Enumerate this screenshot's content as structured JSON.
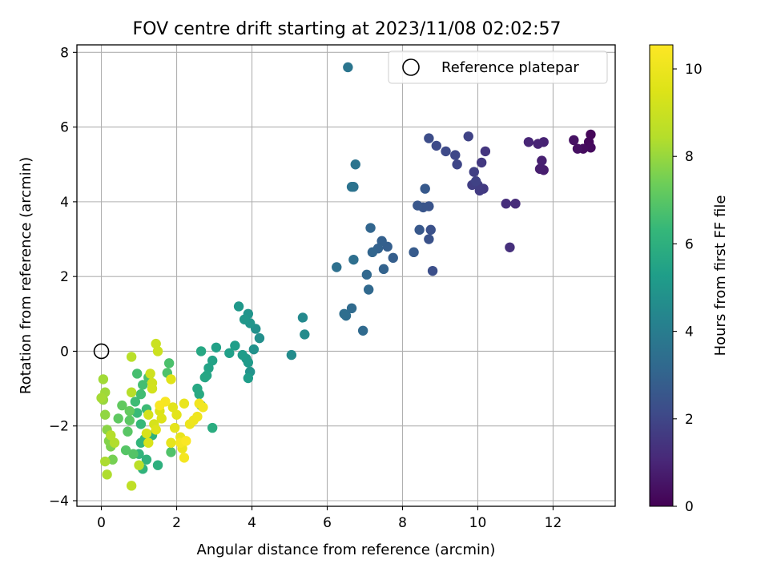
{
  "chart_data": {
    "type": "scatter",
    "title": "FOV centre drift starting at 2023/11/08 02:02:57",
    "xlabel": "Angular distance from reference (arcmin)",
    "ylabel": "Rotation from reference (arcmin)",
    "xlim": [
      -0.65,
      13.65
    ],
    "ylim": [
      -4.15,
      8.2
    ],
    "xticks": [
      0,
      2,
      4,
      6,
      8,
      10,
      12
    ],
    "yticks": [
      -4,
      -2,
      0,
      2,
      4,
      6,
      8
    ],
    "grid": true,
    "legend": {
      "placement": "top-right",
      "entries": [
        "Reference platepar"
      ]
    },
    "reference_point": {
      "label": "Reference platepar",
      "x": 0,
      "y": 0
    },
    "colorbar": {
      "label": "Hours from first FF file",
      "colormap": "viridis",
      "min": 0,
      "max": 10.55,
      "ticks": [
        0,
        2,
        4,
        6,
        8,
        10
      ]
    },
    "points": [
      [
        13.0,
        5.8,
        0.15
      ],
      [
        12.95,
        5.6,
        0.2
      ],
      [
        13.0,
        5.45,
        0.25
      ],
      [
        12.8,
        5.42,
        0.3
      ],
      [
        12.65,
        5.42,
        0.4
      ],
      [
        12.55,
        5.65,
        0.45
      ],
      [
        11.75,
        4.85,
        0.75
      ],
      [
        11.65,
        4.88,
        0.8
      ],
      [
        11.7,
        5.1,
        0.85
      ],
      [
        11.75,
        5.6,
        0.9
      ],
      [
        11.6,
        5.55,
        0.95
      ],
      [
        11.35,
        5.6,
        1.0
      ],
      [
        11.0,
        3.95,
        1.2
      ],
      [
        10.75,
        3.95,
        1.25
      ],
      [
        10.85,
        2.78,
        1.3
      ],
      [
        10.2,
        5.35,
        1.5
      ],
      [
        10.1,
        5.05,
        1.55
      ],
      [
        10.15,
        4.35,
        1.6
      ],
      [
        10.05,
        4.3,
        1.65
      ],
      [
        10.0,
        4.45,
        1.7
      ],
      [
        9.85,
        4.45,
        1.75
      ],
      [
        9.9,
        4.8,
        1.8
      ],
      [
        9.75,
        5.75,
        1.9
      ],
      [
        9.95,
        4.55,
        1.85
      ],
      [
        9.45,
        5.0,
        2.0
      ],
      [
        9.4,
        5.25,
        2.05
      ],
      [
        9.15,
        5.35,
        2.1
      ],
      [
        8.9,
        5.5,
        2.15
      ],
      [
        8.7,
        5.7,
        2.2
      ],
      [
        8.8,
        2.15,
        2.3
      ],
      [
        8.75,
        3.25,
        2.35
      ],
      [
        8.7,
        3.0,
        2.4
      ],
      [
        8.7,
        3.88,
        2.45
      ],
      [
        8.55,
        3.85,
        2.5
      ],
      [
        8.4,
        3.9,
        2.55
      ],
      [
        8.45,
        3.25,
        2.6
      ],
      [
        8.6,
        4.35,
        2.65
      ],
      [
        8.3,
        2.65,
        2.7
      ],
      [
        7.75,
        2.5,
        2.8
      ],
      [
        7.6,
        2.8,
        2.85
      ],
      [
        7.45,
        2.95,
        2.9
      ],
      [
        7.35,
        2.75,
        2.95
      ],
      [
        7.5,
        2.2,
        3.0
      ],
      [
        7.2,
        2.65,
        3.05
      ],
      [
        7.15,
        3.3,
        3.1
      ],
      [
        7.05,
        2.05,
        3.15
      ],
      [
        7.1,
        1.65,
        3.2
      ],
      [
        6.95,
        0.55,
        3.25
      ],
      [
        6.65,
        1.15,
        3.3
      ],
      [
        6.5,
        0.95,
        3.35
      ],
      [
        6.45,
        1.0,
        3.4
      ],
      [
        6.7,
        2.45,
        3.45
      ],
      [
        6.25,
        2.25,
        3.5
      ],
      [
        6.7,
        4.4,
        3.55
      ],
      [
        6.65,
        4.4,
        3.6
      ],
      [
        6.75,
        5.0,
        3.65
      ],
      [
        6.55,
        7.6,
        3.7
      ],
      [
        5.35,
        0.9,
        4.5
      ],
      [
        5.4,
        0.45,
        4.55
      ],
      [
        5.05,
        -0.1,
        4.6
      ],
      [
        4.2,
        0.35,
        4.7
      ],
      [
        4.1,
        0.6,
        4.75
      ],
      [
        4.05,
        0.05,
        4.8
      ],
      [
        3.95,
        -0.55,
        4.85
      ],
      [
        3.9,
        1.0,
        4.9
      ],
      [
        3.95,
        0.75,
        4.95
      ],
      [
        3.8,
        0.85,
        5.0
      ],
      [
        3.65,
        1.2,
        5.05
      ],
      [
        3.85,
        -0.2,
        5.1
      ],
      [
        3.9,
        -0.3,
        5.15
      ],
      [
        3.75,
        -0.1,
        5.2
      ],
      [
        3.9,
        -0.72,
        5.25
      ],
      [
        3.55,
        0.15,
        5.3
      ],
      [
        3.4,
        -0.05,
        5.35
      ],
      [
        3.05,
        0.1,
        5.4
      ],
      [
        2.95,
        -0.25,
        5.45
      ],
      [
        2.85,
        -0.45,
        5.5
      ],
      [
        2.8,
        -0.65,
        5.55
      ],
      [
        2.75,
        -0.7,
        5.6
      ],
      [
        2.65,
        0.0,
        5.65
      ],
      [
        2.55,
        -1.0,
        5.7
      ],
      [
        2.6,
        -1.15,
        5.75
      ],
      [
        2.65,
        -1.45,
        5.8
      ],
      [
        2.95,
        -2.05,
        5.85
      ],
      [
        1.5,
        -3.05,
        6.0
      ],
      [
        1.35,
        -2.25,
        6.05
      ],
      [
        1.2,
        -2.9,
        6.1
      ],
      [
        1.1,
        -3.15,
        6.15
      ],
      [
        1.0,
        -2.75,
        6.2
      ],
      [
        1.05,
        -2.45,
        6.25
      ],
      [
        1.15,
        -2.35,
        6.3
      ],
      [
        1.05,
        -1.95,
        6.35
      ],
      [
        0.95,
        -1.65,
        6.4
      ],
      [
        1.2,
        -1.55,
        6.45
      ],
      [
        0.9,
        -1.35,
        6.5
      ],
      [
        1.05,
        -1.15,
        6.55
      ],
      [
        1.1,
        -0.9,
        6.6
      ],
      [
        0.95,
        -0.6,
        6.65
      ],
      [
        1.25,
        -0.7,
        6.7
      ],
      [
        1.8,
        -0.32,
        6.75
      ],
      [
        1.75,
        -0.58,
        6.8
      ],
      [
        1.85,
        -2.7,
        6.85
      ],
      [
        0.85,
        -2.75,
        6.9
      ],
      [
        0.65,
        -2.65,
        6.95
      ],
      [
        0.7,
        -2.15,
        7.0
      ],
      [
        0.75,
        -1.85,
        7.05
      ],
      [
        0.45,
        -1.8,
        7.1
      ],
      [
        0.55,
        -1.45,
        7.15
      ],
      [
        0.75,
        -1.6,
        7.2
      ],
      [
        0.3,
        -2.9,
        7.5
      ],
      [
        0.25,
        -2.55,
        7.6
      ],
      [
        0.2,
        -2.4,
        7.7
      ],
      [
        0.15,
        -2.1,
        7.8
      ],
      [
        0.1,
        -1.7,
        7.9
      ],
      [
        0.05,
        -1.3,
        8.0
      ],
      [
        0.1,
        -1.1,
        8.1
      ],
      [
        0.05,
        -0.75,
        8.15
      ],
      [
        0.0,
        -1.25,
        8.2
      ],
      [
        0.1,
        -2.95,
        8.3
      ],
      [
        0.15,
        -3.3,
        8.35
      ],
      [
        0.35,
        -2.45,
        8.4
      ],
      [
        0.25,
        -2.25,
        8.45
      ],
      [
        0.8,
        -1.1,
        8.5
      ],
      [
        0.8,
        -0.15,
        8.55
      ],
      [
        1.0,
        -3.05,
        8.6
      ],
      [
        0.8,
        -3.6,
        8.7
      ],
      [
        1.45,
        0.2,
        9.0
      ],
      [
        1.5,
        0.0,
        9.05
      ],
      [
        1.3,
        -0.6,
        9.1
      ],
      [
        1.35,
        -0.85,
        9.15
      ],
      [
        1.35,
        -1.0,
        9.2
      ],
      [
        1.25,
        -1.7,
        9.25
      ],
      [
        1.4,
        -1.95,
        9.3
      ],
      [
        1.2,
        -2.2,
        9.35
      ],
      [
        1.25,
        -2.45,
        9.4
      ],
      [
        1.55,
        -1.6,
        9.45
      ],
      [
        1.6,
        -1.8,
        9.5
      ],
      [
        1.45,
        -2.1,
        9.55
      ],
      [
        1.85,
        -0.75,
        9.6
      ],
      [
        1.9,
        -1.5,
        9.65
      ],
      [
        2.0,
        -1.7,
        9.7
      ],
      [
        1.95,
        -2.05,
        9.75
      ],
      [
        1.85,
        -2.45,
        9.8
      ],
      [
        2.1,
        -2.3,
        9.85
      ],
      [
        2.2,
        -1.4,
        9.9
      ],
      [
        2.15,
        -2.6,
        9.95
      ],
      [
        2.35,
        -1.95,
        10.0
      ],
      [
        2.45,
        -1.85,
        10.05
      ],
      [
        2.55,
        -1.75,
        10.1
      ],
      [
        2.6,
        -1.4,
        10.15
      ],
      [
        2.7,
        -1.5,
        10.2
      ],
      [
        2.2,
        -2.85,
        10.25
      ],
      [
        2.1,
        -2.45,
        10.3
      ],
      [
        1.7,
        -1.35,
        10.35
      ],
      [
        1.55,
        -1.45,
        10.4
      ],
      [
        2.25,
        -2.4,
        10.45
      ]
    ]
  }
}
